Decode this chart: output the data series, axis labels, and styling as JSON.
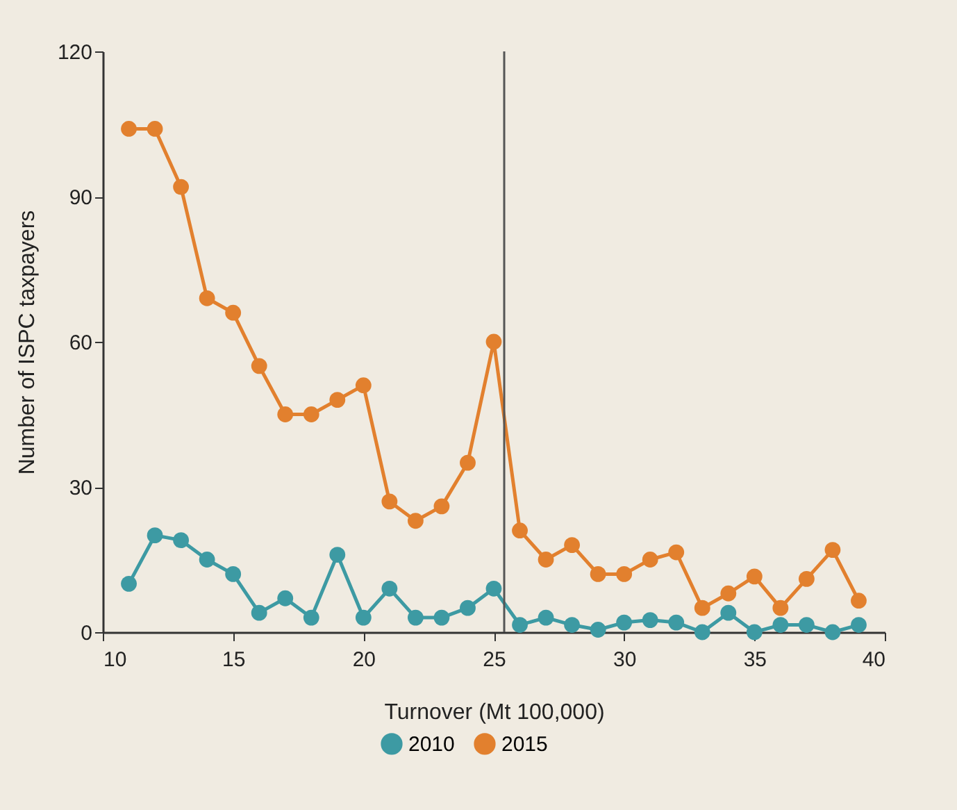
{
  "chart_data": {
    "type": "line",
    "xlabel": "Turnover (Mt 100,000)",
    "ylabel": "Number of ISPC taxpayers",
    "x": [
      11,
      12,
      13,
      14,
      15,
      16,
      17,
      18,
      19,
      20,
      21,
      22,
      23,
      24,
      25,
      26,
      27,
      28,
      29,
      30,
      31,
      32,
      33,
      34,
      35,
      36,
      37,
      38,
      39
    ],
    "series": [
      {
        "name": "2010",
        "color": "#3d9aa3",
        "values": [
          10,
          20,
          19,
          15,
          12,
          4,
          7,
          3,
          16,
          3,
          9,
          3,
          3,
          5,
          9,
          1.5,
          3,
          1.5,
          0.5,
          2,
          2.5,
          2,
          0,
          4,
          0,
          1.5,
          1.5,
          0,
          1.5
        ]
      },
      {
        "name": "2015",
        "color": "#e2802e",
        "values": [
          104,
          104,
          92,
          69,
          66,
          55,
          45,
          45,
          48,
          51,
          27,
          23,
          26,
          35,
          60,
          21,
          15,
          18,
          12,
          12,
          15,
          16.5,
          5,
          8,
          11.5,
          5,
          11,
          17,
          6.5
        ]
      }
    ],
    "xlim": [
      10,
      40
    ],
    "xticks": [
      10,
      15,
      20,
      25,
      30,
      35,
      40
    ],
    "ylim": [
      0,
      120
    ],
    "yticks": [
      0,
      30,
      60,
      90,
      120
    ],
    "ref_lines": [
      {
        "axis": "x",
        "value": 25.4,
        "color": "#555555"
      }
    ],
    "grid": false,
    "legend": "bottom",
    "marker": "circle",
    "line_style": "solid"
  }
}
